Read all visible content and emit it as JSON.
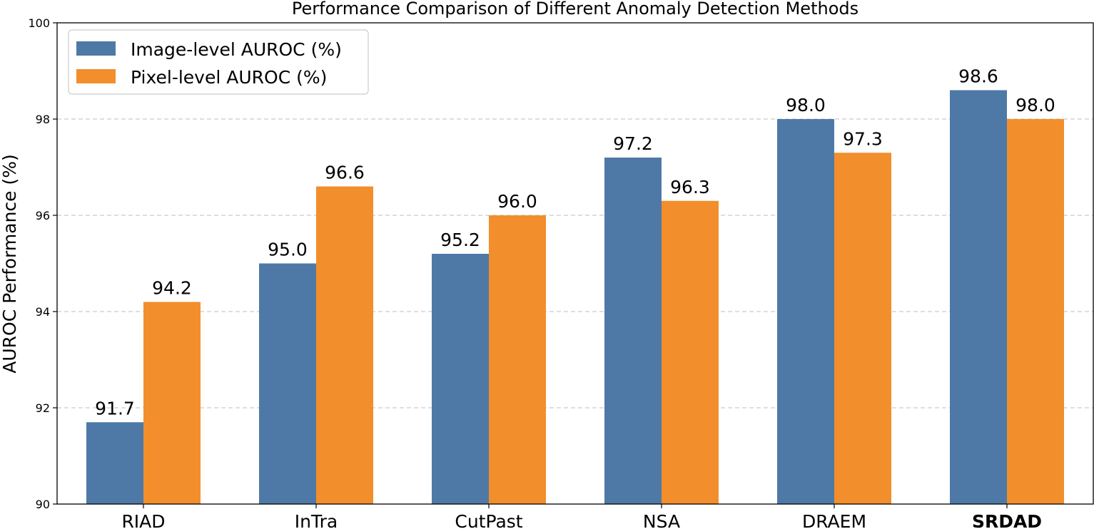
{
  "chart_data": {
    "type": "bar",
    "title": "Performance Comparison of Different Anomaly Detection Methods",
    "xlabel": "",
    "ylabel": "AUROC Performance (%)",
    "ylim": [
      90,
      100
    ],
    "yticks": [
      90,
      92,
      94,
      96,
      98,
      100
    ],
    "grid": "y-dashed",
    "legend_position": "top-left",
    "categories": [
      "RIAD",
      "InTra",
      "CutPast",
      "NSA",
      "DRAEM",
      "SRDAD"
    ],
    "bold_categories": [
      "SRDAD"
    ],
    "series": [
      {
        "name": "Image-level AUROC (%)",
        "color": "#4e79a7",
        "values": [
          91.7,
          95.0,
          95.2,
          97.2,
          98.0,
          98.6
        ],
        "labels": [
          "91.7",
          "95.0",
          "95.2",
          "97.2",
          "98.0",
          "98.6"
        ]
      },
      {
        "name": "Pixel-level AUROC (%)",
        "color": "#f28e2b",
        "values": [
          94.2,
          96.6,
          96.0,
          96.3,
          97.3,
          98.0
        ],
        "labels": [
          "94.2",
          "96.6",
          "96.0",
          "96.3",
          "97.3",
          "98.0"
        ]
      }
    ]
  }
}
